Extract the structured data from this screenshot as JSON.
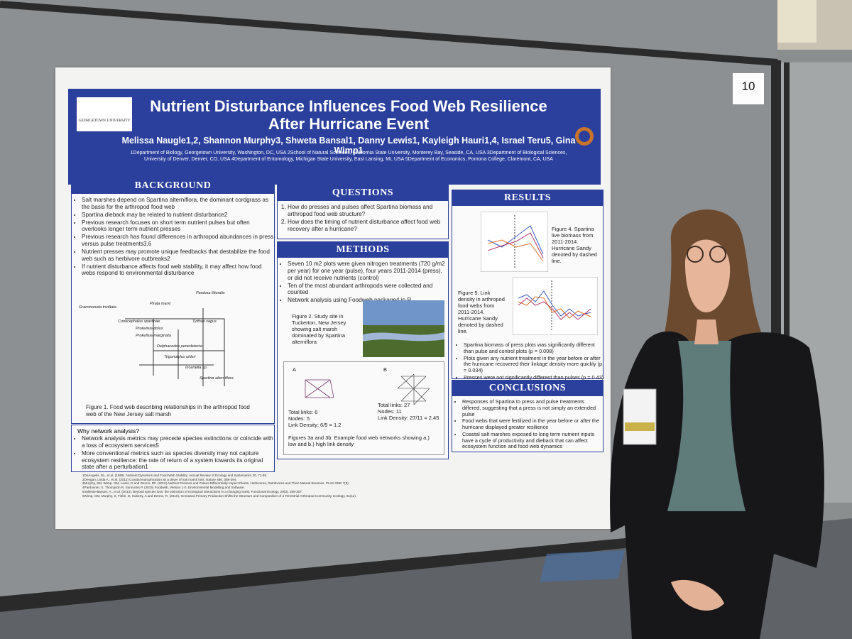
{
  "sign": "10",
  "poster": {
    "logo": "GEORGETOWN UNIVERSITY",
    "title": "Nutrient Disturbance Influences Food Web Resilience After Hurricane Event",
    "authors": "Melissa Naugle1,2, Shannon Murphy3, Shweta Bansal1, Danny Lewis1, Kayleigh Hauri1,4, Israel Teru5, Gina Wimp1",
    "affiliations": "1Department of Biology, Georgetown University, Washington, DC, USA 2School of Natural Sciences, California State University, Monterey Bay, Seaside, CA, USA 3Department of Biological Sciences, University of Denver, Denver, CO, USA 4Department of Entomology, Michigan State University, East Lansing, MI, USA 5Department of Economics, Pomona College, Claremont, CA, USA",
    "background": {
      "heading": "BACKGROUND",
      "bullets": [
        "Salt marshes depend on Spartina alterniflora, the dominant cordgrass as the basis for the arthropod food web",
        "Spartina dieback may be related to nutrient disturbance2",
        "Previous research focuses on short term nutrient pulses but often overlooks longer term nutrient presses",
        "Previous research has found differences in arthropod abundances in press versus pulse treatments3,6",
        "Nutrient presses may promote unique feedbacks that destabilize the food web such as herbivore outbreaks2",
        "If nutrient disturbance affects food web stability, it may affect how food webs respond to environmental disturbance"
      ],
      "species": [
        "Pardosa littoralis",
        "Grammonota trivittata",
        "Pirata marxi",
        "Conocephalus spartinae",
        "Tytthus vagus",
        "Prokelisia dolus",
        "Prokelisia marginata",
        "Delphacodes penedetecta",
        "Trigonotylus uhleri",
        "Incertella sp.",
        "Spartina alterniflora"
      ],
      "figure_caption": "Figure 1. Food web describing relationships in the arthropod food web of the New Jersey salt marsh"
    },
    "network": {
      "heading": "Why network analysis?",
      "bullets": [
        "Network analysis metrics may precede species extinctions or coincide with a loss of ecosystem services5",
        "More conventional metrics such as species diversity may not capture ecosystem resilience: the rate of return of a system towards its original state after a perturbation1"
      ]
    },
    "references": [
      "1DeAngelis, DL, et al. (1989). Nutrient Dynamics and Food-Web Stability. Annual Review of Ecology and Systematics 20, 71-95.",
      "2Deegan, Linda A., et al. (2012) Coastal eutrophication as a driver of salt marsh loss. Nature 490, 388-394.",
      "3Murphy, SM, Wimp, GM, Lewis, D and Denno, RF. (2012) Nutrient Presses and Pulses Differentially Impact Plants, Herbivores, Detritivores and Their Natural Enemies. PLoS ONE 7(8).",
      "4Pardonnet, S. Thompson R, Sunnucks P. (2015) Foodweb, Version 1-0. Environmental Modelling and Software.",
      "5Valiente-Banuet, A., et al. (2014). Beyond species loss: the extinction of ecological interactions in a changing world. Functional Ecology, 29(3), 299-307.",
      "6Wimp, GM, Murphy, S, Finke, D, Huberty, A and Denno, R. (2010). Increased Primary Production Shifts the Structure and Composition of a Terrestrial Arthropod Community. Ecology, 91(11)."
    ],
    "questions": {
      "heading": "QUESTIONS",
      "items": [
        "How do presses and pulses affect Spartina biomass and arthropod food web structure?",
        "How does the timing of nutrient disturbance affect food web recovery after a hurricane?"
      ]
    },
    "methods": {
      "heading": "METHODS",
      "items": [
        "Seven 10 m2 plots were given nitrogen treatments (720 g/m2 per year) for one year (pulse), four years 2011-2014 (press), or did not receive nutrients (control)",
        "Ten of the most abundant arthropods were collected and counted",
        "Network analysis using Foodweb package4 in R"
      ],
      "figure2": "Figure 2. Study site in Tuckerton, New Jersey showing salt marsh dominated by Spartina alterniflora",
      "net_a": {
        "label": "A",
        "stats": [
          "Total links: 6",
          "Nodes: 5",
          "Link Density: 6/5 = 1.2"
        ]
      },
      "net_b": {
        "label": "B",
        "stats": [
          "Total links: 27",
          "Nodes: 11",
          "Link Density: 27/11 = 2.45"
        ]
      },
      "figure3": "Figures 3a and 3b. Example food web networks showing a.) low and b.) high link density"
    },
    "results": {
      "heading": "RESULTS",
      "figure4": "Figure 4. Spartina live biomass from 2011-2014. Hurricane Sandy denoted by dashed line.",
      "figure5": "Figure 5. Link density in arthropod food webs from 2011-2014. Hurricane Sandy denoted by dashed line.",
      "bullets": [
        "Spartina biomass of press plots was significantly different than pulse and control plots (p = 0.008)",
        "Plots given any nutrient treatment in the year before or after the hurricane recovered their linkage density more quickly (p = 0.034)",
        "Presses were not significantly different than pulses (p = 0.43)"
      ]
    },
    "conclusions": {
      "heading": "CONCLUSIONS",
      "bullets": [
        "Responses of Spartina to press and pulse treatments differed, suggesting that a press is not simply an extended pulse",
        "Food webs that were fertilized in the year before or after the hurricane displayed greater resilience",
        "Coastal salt marshes exposed to long term nutrient inputs have a cycle of productivity and dieback that can affect ecosystem function and food web dynamics"
      ]
    }
  }
}
